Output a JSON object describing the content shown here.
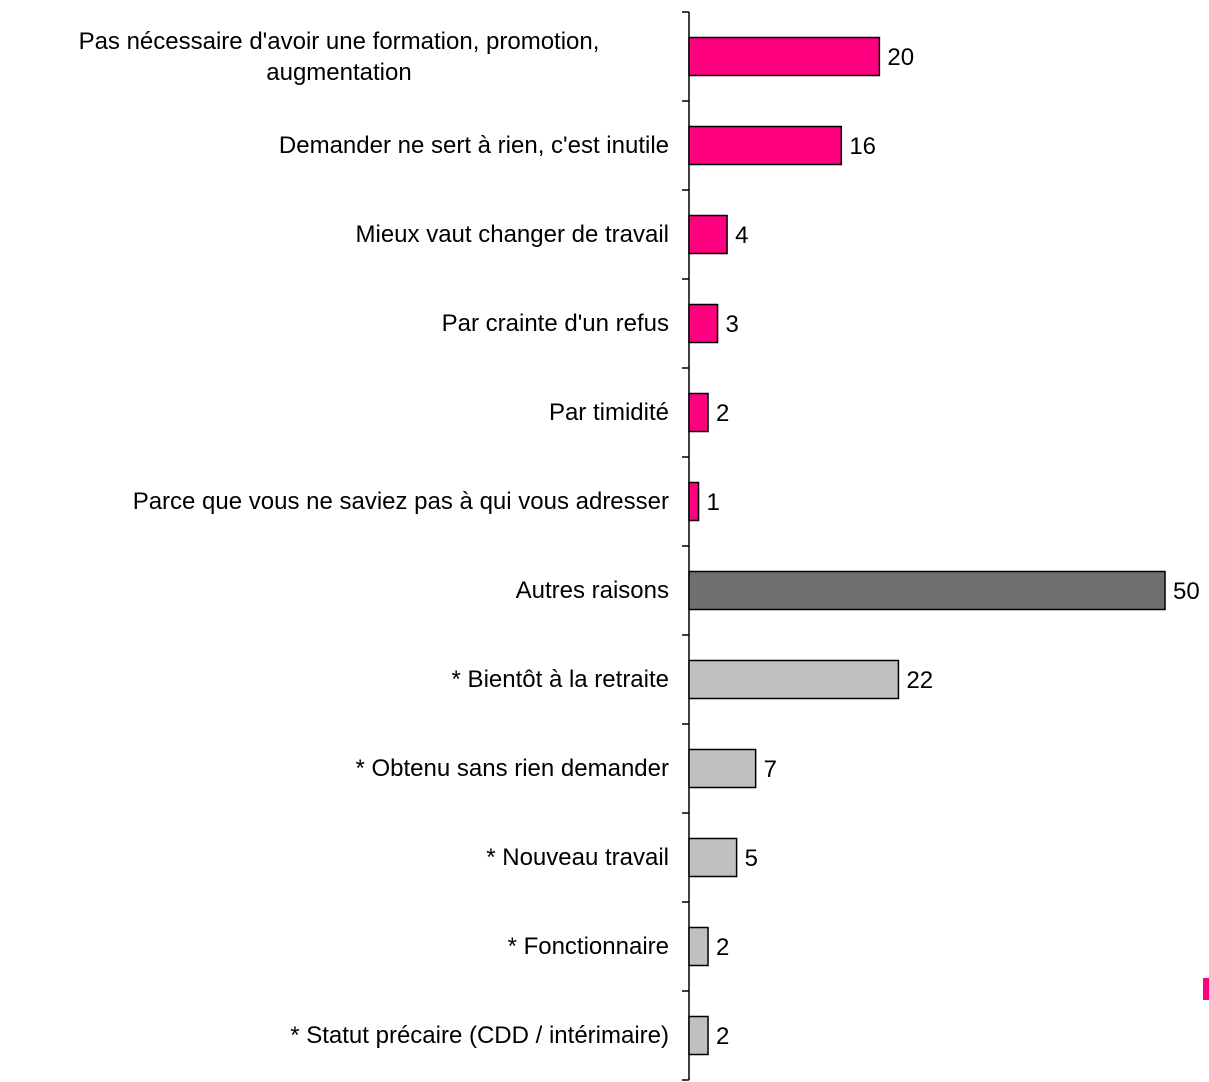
{
  "chart_data": {
    "type": "bar",
    "orientation": "horizontal",
    "categories": [
      "Pas nécessaire d'avoir une formation, promotion, augmentation",
      "Demander ne sert à rien, c'est inutile",
      "Mieux vaut changer de travail",
      "Par crainte d'un refus",
      "Par timidité",
      "Parce que vous ne saviez pas à qui vous adresser",
      "Autres raisons",
      "* Bientôt à la retraite",
      "* Obtenu sans rien demander",
      "* Nouveau travail",
      "* Fonctionnaire",
      "* Statut précaire (CDD / intérimaire)"
    ],
    "values": [
      20,
      16,
      4,
      3,
      2,
      1,
      50,
      22,
      7,
      5,
      2,
      2
    ],
    "colors": [
      "#ff0080",
      "#ff0080",
      "#ff0080",
      "#ff0080",
      "#ff0080",
      "#ff0080",
      "#707070",
      "#c0c0c0",
      "#c0c0c0",
      "#c0c0c0",
      "#c0c0c0",
      "#c0c0c0"
    ]
  }
}
